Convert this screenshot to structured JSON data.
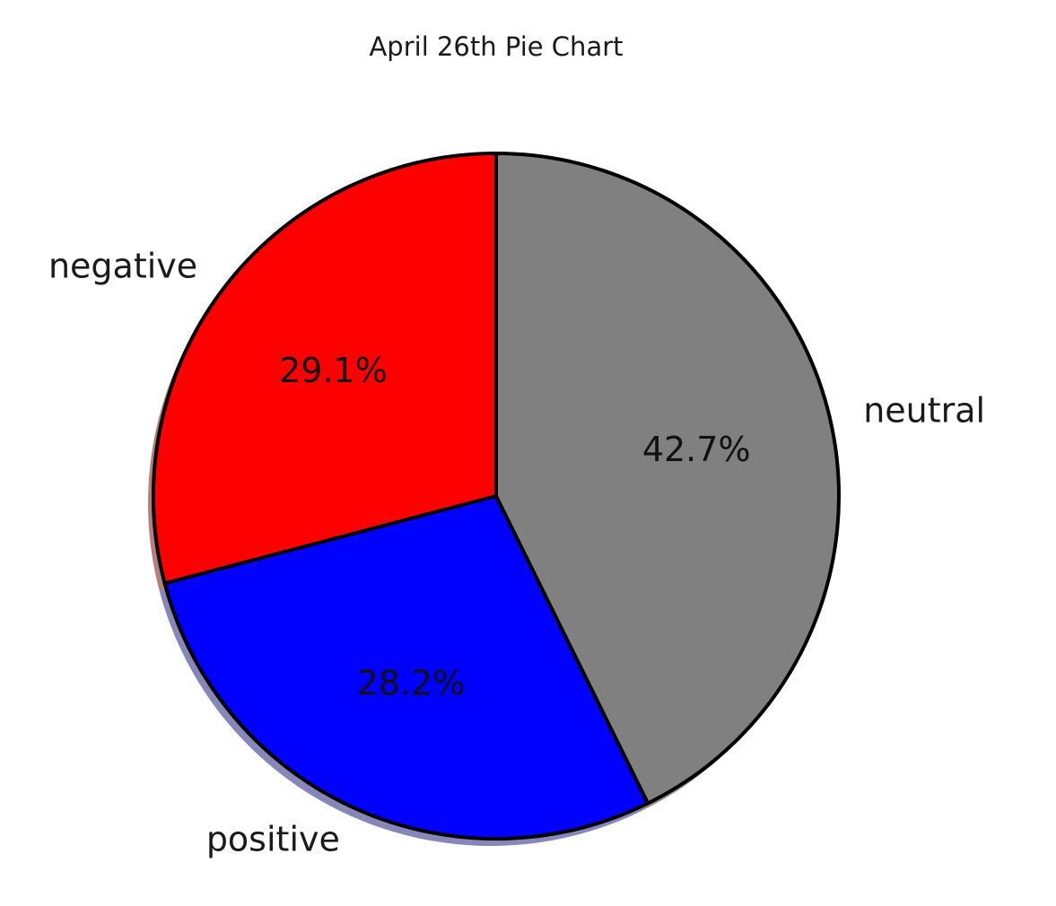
{
  "chart_data": {
    "type": "pie",
    "title": "April 26th Pie Chart",
    "start_angle_deg": 90,
    "direction": "counterclockwise",
    "shadow": true,
    "edge_color": "#000000",
    "slices": [
      {
        "label": "negative",
        "value": 29.1,
        "pct_label": "29.1%",
        "color": "#ff0000",
        "shadow_color": "#9e5252"
      },
      {
        "label": "positive",
        "value": 28.2,
        "pct_label": "28.2%",
        "color": "#0000ff",
        "shadow_color": "#5e5ea0"
      },
      {
        "label": "neutral",
        "value": 42.7,
        "pct_label": "42.7%",
        "color": "#808080",
        "shadow_color": "#6a6a6a"
      }
    ]
  }
}
